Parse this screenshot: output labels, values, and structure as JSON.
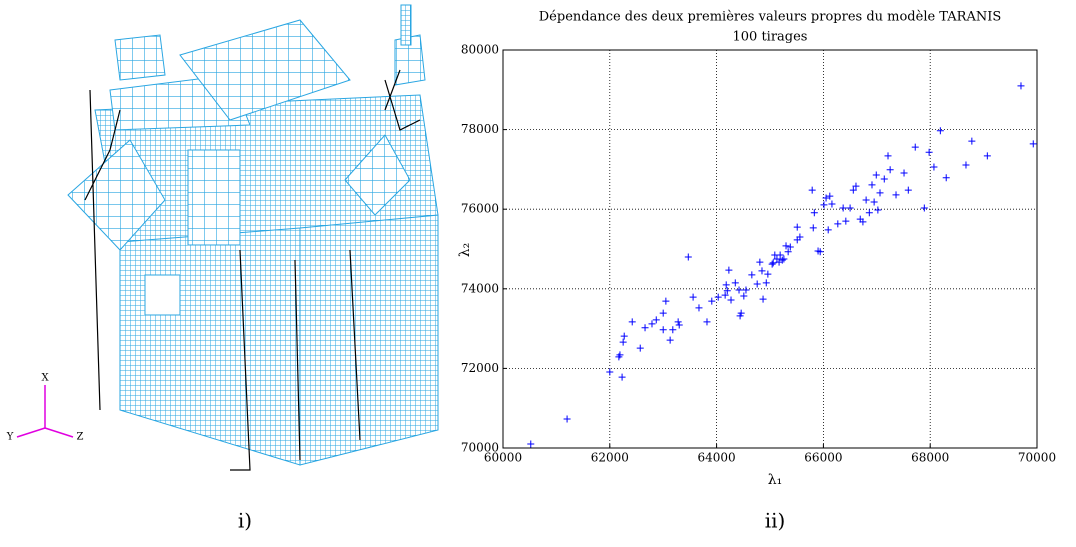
{
  "figure_labels": [
    "i)",
    "ii)"
  ],
  "triad": {
    "x": "X",
    "y": "Y",
    "z": "Z"
  },
  "chart_data": {
    "type": "scatter",
    "title": "Dépendance des deux premières valeurs propres du modèle TARANIS",
    "subtitle": "100 tirages",
    "xlabel": "λ₁",
    "ylabel": "λ₂",
    "color": "#0000ff",
    "grid": true,
    "xlim": [
      60000,
      70000
    ],
    "xticks": [
      60000,
      62000,
      64000,
      66000,
      68000,
      70000
    ],
    "ylim": [
      70000,
      80000
    ],
    "yticks": [
      70000,
      72000,
      74000,
      76000,
      78000,
      80000
    ],
    "x": [
      60520,
      61200,
      62000,
      62230,
      62190,
      62170,
      62270,
      62250,
      62420,
      62570,
      62660,
      62790,
      62870,
      63000,
      63050,
      63000,
      63130,
      63180,
      63280,
      63300,
      63470,
      63560,
      63670,
      63820,
      63910,
      64030,
      64160,
      64180,
      64200,
      64230,
      64270,
      64350,
      64420,
      64440,
      64460,
      64510,
      64550,
      64660,
      64760,
      64810,
      64850,
      64870,
      64930,
      64960,
      65040,
      65060,
      65090,
      65130,
      65170,
      65190,
      65230,
      65260,
      65340,
      65380,
      65300,
      65510,
      65510,
      65560,
      65810,
      65790,
      65830,
      65900,
      65940,
      66010,
      66050,
      66090,
      66160,
      66120,
      66270,
      66370,
      66420,
      66500,
      66560,
      66610,
      66690,
      66740,
      66800,
      66860,
      66910,
      66950,
      66990,
      67020,
      67060,
      67140,
      67210,
      67250,
      67360,
      67510,
      67590,
      67720,
      67890,
      67980,
      68070,
      68190,
      68300,
      68670,
      68780,
      69070,
      69700,
      69930
    ],
    "values": [
      70100,
      70730,
      71910,
      71780,
      72340,
      72290,
      72810,
      72660,
      73170,
      72510,
      73020,
      73120,
      73220,
      73390,
      73690,
      72970,
      72710,
      72970,
      73170,
      73090,
      74800,
      73790,
      73520,
      73170,
      73690,
      73790,
      73840,
      74100,
      73950,
      74470,
      73720,
      74150,
      73970,
      73320,
      73390,
      73820,
      73970,
      74350,
      74120,
      74670,
      74450,
      73740,
      74150,
      74370,
      74620,
      74650,
      74850,
      74750,
      74670,
      74850,
      74720,
      74750,
      74930,
      75050,
      75080,
      75230,
      75550,
      75300,
      75530,
      76480,
      75910,
      74950,
      74930,
      76110,
      76280,
      75480,
      76130,
      76330,
      75630,
      76030,
      75700,
      76030,
      76480,
      76580,
      75750,
      75680,
      76230,
      75910,
      76610,
      76180,
      76860,
      75980,
      76410,
      76760,
      77340,
      76990,
      76360,
      76910,
      76480,
      77560,
      76030,
      77430,
      77060,
      77970,
      76790,
      77110,
      77710,
      77340,
      79100,
      77640
    ]
  }
}
